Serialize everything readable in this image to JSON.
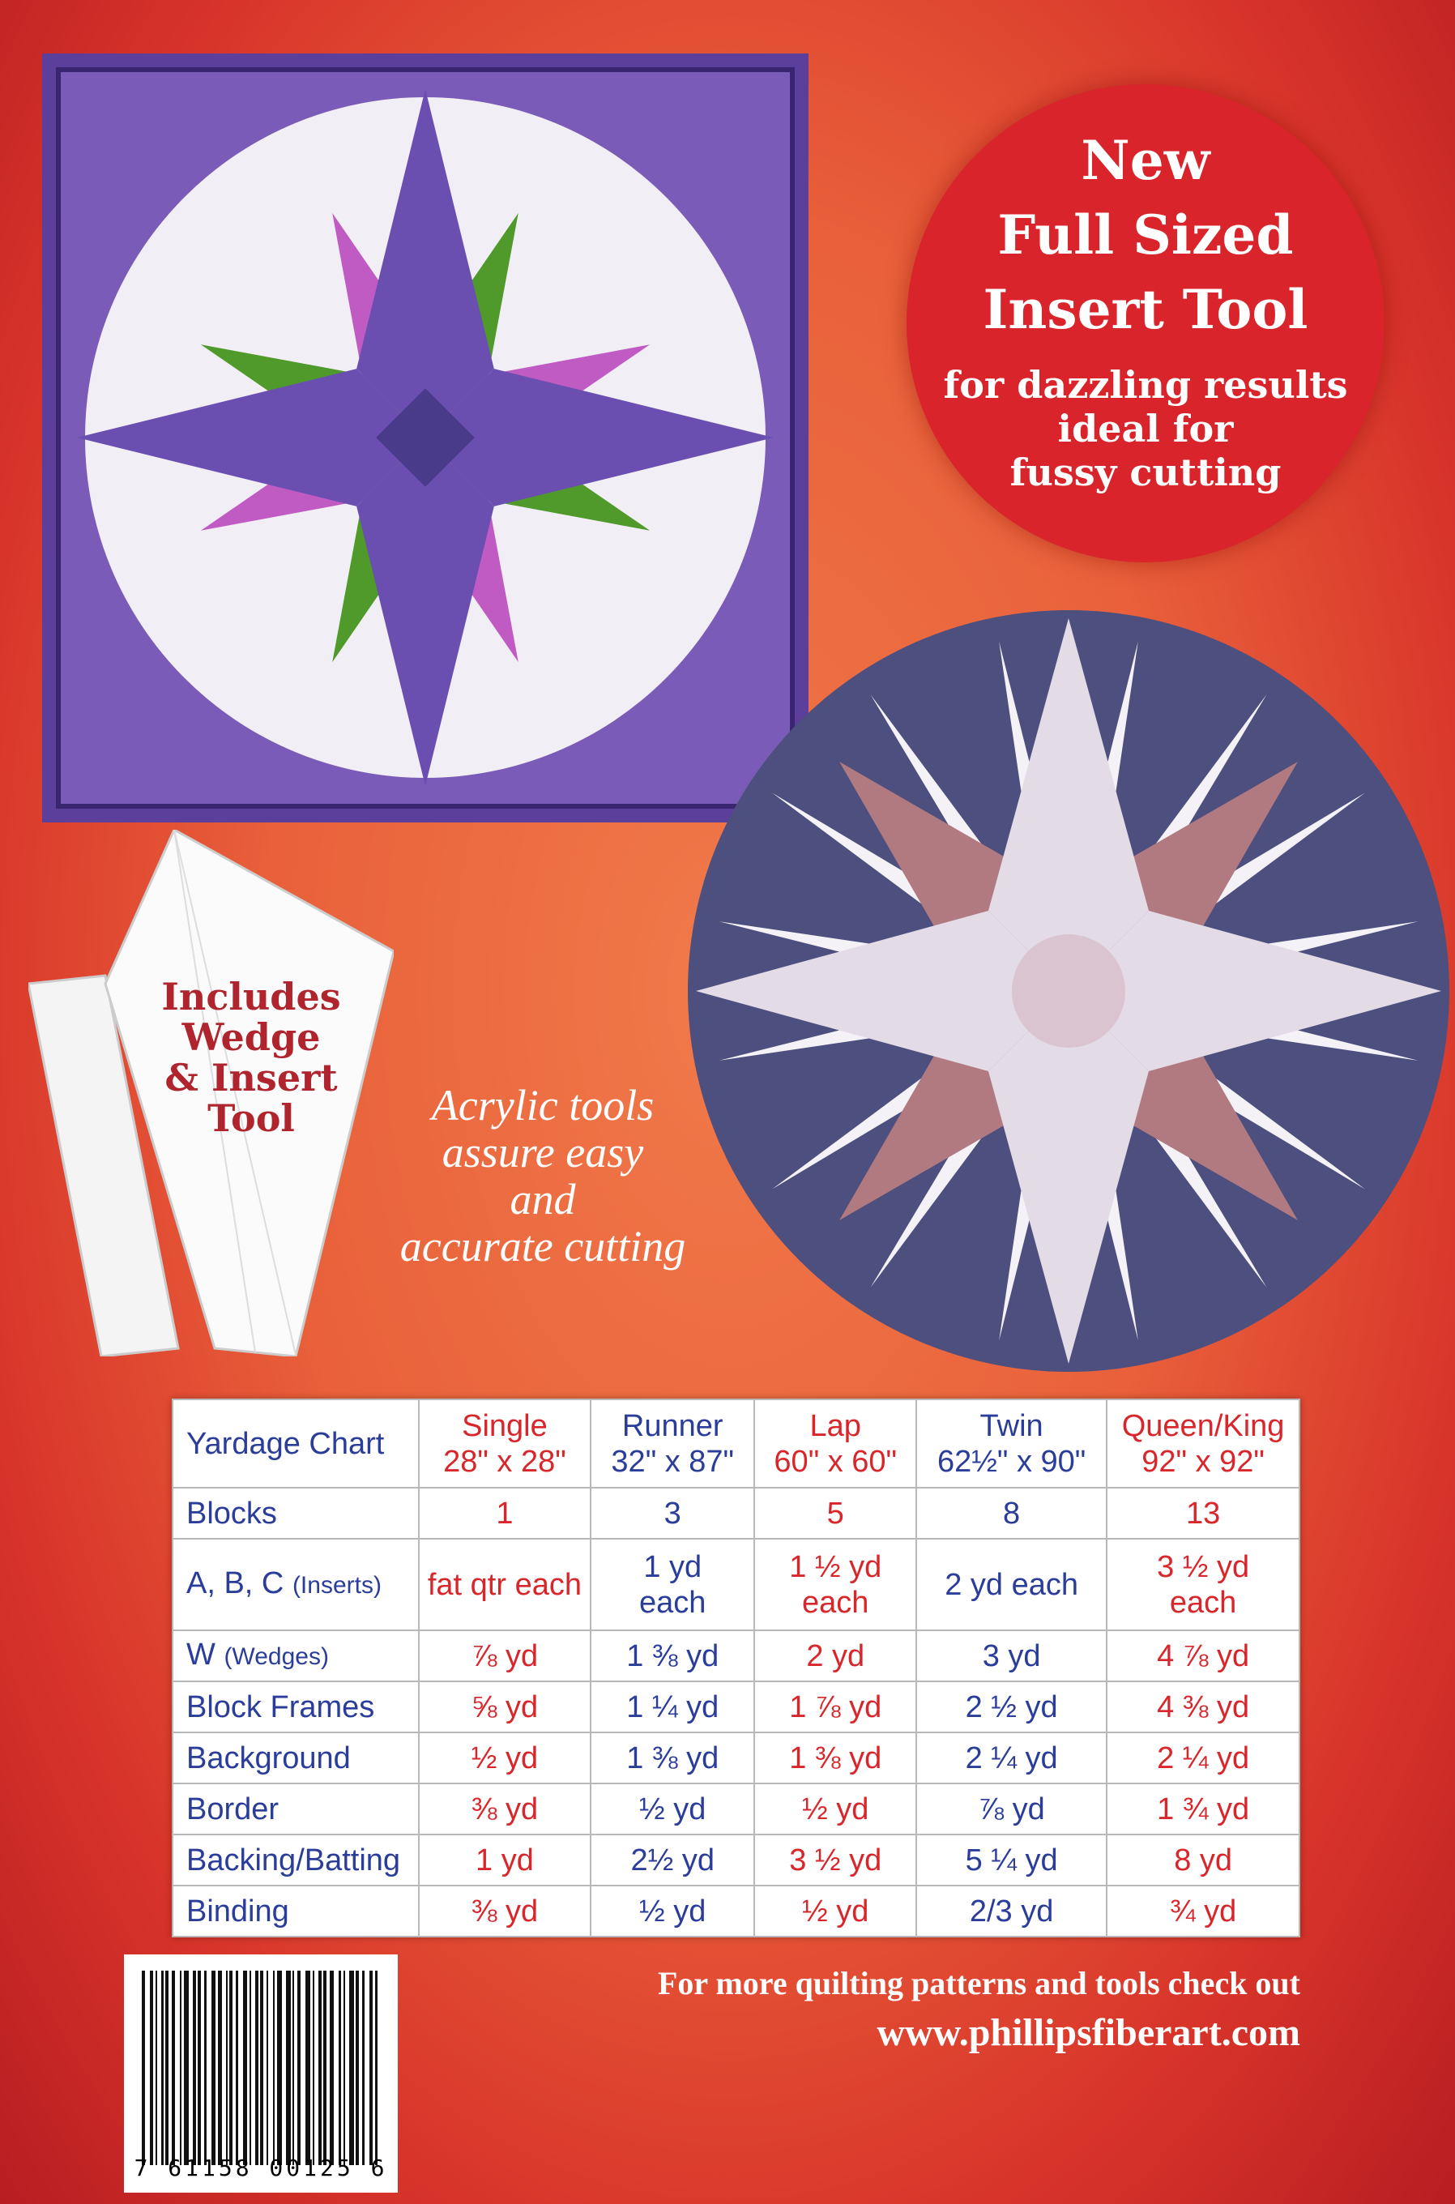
{
  "badge": {
    "line1": "New",
    "line2": "Full Sized",
    "line3": "Insert Tool",
    "line4": "for dazzling results",
    "line5": "ideal for",
    "line6": "fussy cutting"
  },
  "tool_label": {
    "line1": "Includes",
    "line2": "Wedge",
    "line3": "& Insert",
    "line4": "Tool"
  },
  "acrylic": {
    "line1": "Acrylic tools",
    "line2": "assure easy",
    "line3": "and",
    "line4": "accurate cutting"
  },
  "colors": {
    "blue": "#2b3d9a",
    "red": "#d9262b",
    "badge": "#d8242a"
  },
  "chart": {
    "title": "Yardage Chart",
    "columns": [
      {
        "name": "Single",
        "size": "28\" x 28\""
      },
      {
        "name": "Runner",
        "size": "32\" x 87\""
      },
      {
        "name": "Lap",
        "size": "60\" x 60\""
      },
      {
        "name": "Twin",
        "size": "62½\" x 90\""
      },
      {
        "name": "Queen/King",
        "size": "92\" x 92\""
      }
    ],
    "rows": [
      {
        "label": "Blocks",
        "note": "",
        "values": [
          "1",
          "3",
          "5",
          "8",
          "13"
        ]
      },
      {
        "label": "A, B, C",
        "note": "(Inserts)",
        "values": [
          "fat qtr each",
          "1 yd each",
          "1 ½ yd each",
          "2 yd each",
          "3 ½ yd each"
        ]
      },
      {
        "label": "W",
        "note": "(Wedges)",
        "values": [
          "⅞ yd",
          "1 ⅜ yd",
          "2 yd",
          "3 yd",
          "4 ⅞ yd"
        ]
      },
      {
        "label": "Block Frames",
        "note": "",
        "values": [
          "⅝ yd",
          "1 ¼ yd",
          "1 ⅞ yd",
          "2 ½ yd",
          "4 ⅜ yd"
        ]
      },
      {
        "label": "Background",
        "note": "",
        "values": [
          "½ yd",
          "1 ⅜ yd",
          "1 ⅜ yd",
          "2 ¼ yd",
          "2 ¼ yd"
        ]
      },
      {
        "label": "Border",
        "note": "",
        "values": [
          "⅜ yd",
          "½ yd",
          "½ yd",
          "⅞ yd",
          "1 ¾ yd"
        ]
      },
      {
        "label": "Backing/Batting",
        "note": "",
        "values": [
          "1 yd",
          "2½ yd",
          "3 ½ yd",
          "5 ¼ yd",
          "8 yd"
        ]
      },
      {
        "label": "Binding",
        "note": "",
        "values": [
          "⅜ yd",
          "½ yd",
          "½ yd",
          "2/3 yd",
          "¾ yd"
        ]
      }
    ]
  },
  "barcode": {
    "number": "7 61158 00125 6"
  },
  "footer": {
    "line1": "For more quilting patterns and tools check out",
    "line2": "www.phillipsfiberart.com"
  }
}
